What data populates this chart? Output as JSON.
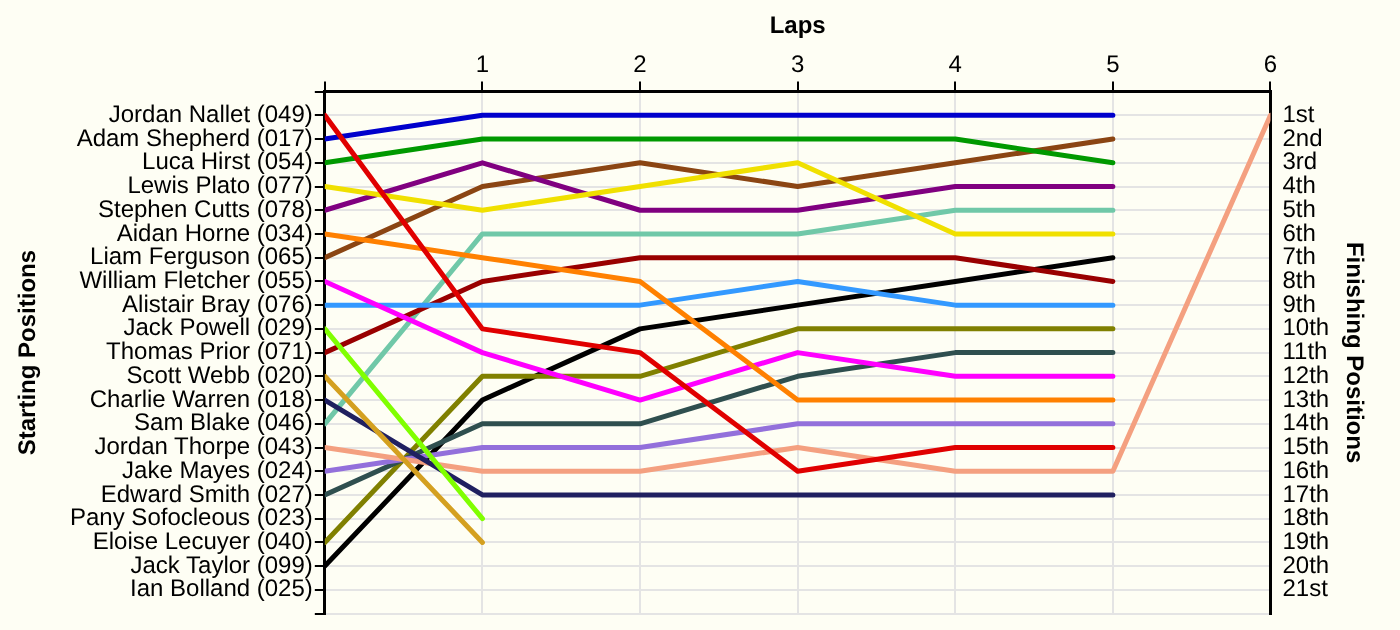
{
  "chart_data": {
    "type": "line",
    "xlabel": "Laps",
    "annotations": [
      "Starting Positions"
    ],
    "y2label": "Finishing Positions",
    "x": [
      0,
      1,
      2,
      3,
      4,
      5,
      6
    ],
    "xlim": [
      0,
      6
    ],
    "xticks": [
      {
        "value": 0,
        "label": null
      },
      1,
      2,
      3,
      4,
      5,
      6
    ],
    "y_categories": [
      "Jordan Nallet (049)",
      "Adam Shepherd (017)",
      "Luca Hirst (054)",
      "Lewis Plato (077)",
      "Stephen Cutts (078)",
      "Aidan Horne (034)",
      "Liam Ferguson (065)",
      "William Fletcher (055)",
      "Alistair Bray (076)",
      "Jack Powell (029)",
      "Thomas Prior (071)",
      "Scott Webb (020)",
      "Charlie Warren (018)",
      "Sam Blake (046)",
      "Jordan Thorpe (043)",
      "Jake Mayes (024)",
      "Edward Smith (027)",
      "Pany Sofocleous (023)",
      "Eloise Lecuyer (040)",
      "Jack Taylor (099)",
      "Ian Bolland (025)"
    ],
    "y2lim": [
      22,
      0
    ],
    "y2ticks": [
      {
        "value": 0,
        "label": null
      },
      {
        "value": 1,
        "label": "1st"
      },
      {
        "value": 2,
        "label": "2nd"
      },
      {
        "value": 3,
        "label": "3rd"
      },
      {
        "value": 4,
        "label": "4th"
      },
      {
        "value": 5,
        "label": "5th"
      },
      {
        "value": 6,
        "label": "6th"
      },
      {
        "value": 7,
        "label": "7th"
      },
      {
        "value": 8,
        "label": "8th"
      },
      {
        "value": 9,
        "label": "9th"
      },
      {
        "value": 10,
        "label": "10th"
      },
      {
        "value": 11,
        "label": "11th"
      },
      {
        "value": 12,
        "label": "12th"
      },
      {
        "value": 13,
        "label": "13th"
      },
      {
        "value": 14,
        "label": "14th"
      },
      {
        "value": 15,
        "label": "15th"
      },
      {
        "value": 16,
        "label": "16th"
      },
      {
        "value": 17,
        "label": "17th"
      },
      {
        "value": 18,
        "label": "18th"
      },
      {
        "value": 19,
        "label": "19th"
      },
      {
        "value": 20,
        "label": "20th"
      },
      {
        "value": 21,
        "label": "21st"
      },
      {
        "value": 22,
        "label": null
      }
    ],
    "grid": true,
    "legend": false,
    "marker": "none",
    "line_style": "solid",
    "series": [
      {
        "axis": "y2",
        "color": "#e00000",
        "values": [
          1,
          10,
          11,
          16,
          15,
          15,
          null
        ]
      },
      {
        "axis": "y2",
        "color": "#0000cc",
        "values": [
          2,
          1,
          1,
          1,
          1,
          1,
          null
        ]
      },
      {
        "axis": "y2",
        "color": "#009900",
        "values": [
          3,
          2,
          2,
          2,
          2,
          3,
          null
        ]
      },
      {
        "axis": "y2",
        "color": "#f0e000",
        "values": [
          4,
          5,
          4,
          3,
          6,
          6,
          null
        ]
      },
      {
        "axis": "y2",
        "color": "#800080",
        "values": [
          5,
          3,
          5,
          5,
          4,
          4,
          null
        ]
      },
      {
        "axis": "y2",
        "color": "#ff8000",
        "values": [
          6,
          7,
          8,
          13,
          13,
          13,
          null
        ]
      },
      {
        "axis": "y2",
        "color": "#8b4513",
        "values": [
          7,
          4,
          3,
          4,
          3,
          2,
          null
        ]
      },
      {
        "axis": "y2",
        "color": "#ff00ff",
        "values": [
          8,
          11,
          13,
          11,
          12,
          12,
          null
        ]
      },
      {
        "axis": "y2",
        "color": "#3399ff",
        "values": [
          9,
          9,
          9,
          8,
          9,
          9,
          null
        ]
      },
      {
        "axis": "y2",
        "color": "#80ff00",
        "values": [
          10,
          18,
          null,
          null,
          null,
          null,
          null
        ]
      },
      {
        "axis": "y2",
        "color": "#990000",
        "values": [
          11,
          8,
          7,
          7,
          7,
          8,
          null
        ]
      },
      {
        "axis": "y2",
        "color": "#d4a020",
        "values": [
          12,
          19,
          null,
          null,
          null,
          null,
          null
        ]
      },
      {
        "axis": "y2",
        "color": "#202060",
        "values": [
          13,
          17,
          17,
          17,
          17,
          17,
          null
        ]
      },
      {
        "axis": "y2",
        "color": "#70c8a8",
        "values": [
          14,
          6,
          6,
          6,
          5,
          5,
          null
        ]
      },
      {
        "axis": "y2",
        "color": "#f4a080",
        "values": [
          15,
          16,
          16,
          15,
          16,
          16,
          1
        ]
      },
      {
        "axis": "y2",
        "color": "#9370db",
        "values": [
          16,
          15,
          15,
          14,
          14,
          14,
          null
        ]
      },
      {
        "axis": "y2",
        "color": "#2f4f4f",
        "values": [
          17,
          14,
          14,
          12,
          11,
          11,
          null
        ]
      },
      {
        "axis": "y2",
        "color": "#808000",
        "values": [
          19,
          12,
          12,
          10,
          10,
          10,
          null
        ]
      },
      {
        "axis": "y2",
        "color": "#000000",
        "values": [
          20,
          13,
          10,
          9,
          8,
          7,
          null
        ]
      }
    ]
  }
}
